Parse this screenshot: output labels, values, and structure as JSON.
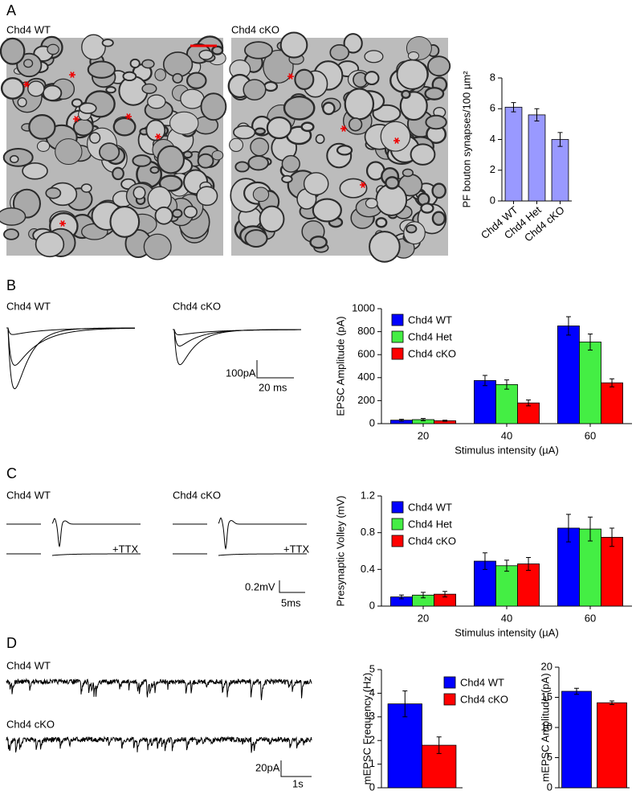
{
  "panel_labels": [
    "A",
    "B",
    "C",
    "D"
  ],
  "panel_a": {
    "images": [
      "Chd4 WT",
      "Chd4 cKO"
    ]
  },
  "panel_b": {
    "traces": [
      "Chd4 WT",
      "Chd4 cKO"
    ],
    "scale_y": "100pA",
    "scale_x": "20 ms"
  },
  "panel_c": {
    "traces": [
      "Chd4 WT",
      "Chd4 cKO"
    ],
    "ttx": [
      "+TTX",
      "+TTX"
    ],
    "scale_y": "0.2mV",
    "scale_x": "5ms"
  },
  "panel_d": {
    "traces": [
      "Chd4 WT",
      "Chd4 cKO"
    ],
    "scale_y": "20pA",
    "scale_x": "1s"
  },
  "chart_data": [
    {
      "type": "bar",
      "ylabel": "PF bouton synapses/100 µm²",
      "categories": [
        "Chd4 WT",
        "Chd4 Het",
        "Chd4 cKO"
      ],
      "values": [
        6.1,
        5.6,
        4.0
      ],
      "errors": [
        0.3,
        0.4,
        0.45
      ],
      "color": "#9999ff",
      "ylim": [
        0,
        8
      ],
      "yticks": [
        0,
        2,
        4,
        6,
        8
      ]
    },
    {
      "type": "bar",
      "ylabel": "EPSC Amplitude (pA)",
      "xlabel": "Stimulus intensity (µA)",
      "categories": [
        "20",
        "40",
        "60"
      ],
      "series": [
        {
          "name": "Chd4 WT",
          "color": "#0000ff",
          "values": [
            30,
            375,
            850
          ],
          "errors": [
            8,
            45,
            80
          ]
        },
        {
          "name": "Chd4 Het",
          "color": "#44ee44",
          "values": [
            35,
            340,
            710
          ],
          "errors": [
            10,
            40,
            70
          ]
        },
        {
          "name": "Chd4 cKO",
          "color": "#ff0000",
          "values": [
            25,
            180,
            355
          ],
          "errors": [
            5,
            25,
            35
          ]
        }
      ],
      "ylim": [
        0,
        1000
      ],
      "yticks": [
        0,
        200,
        400,
        600,
        800,
        1000
      ],
      "legend": "upper left"
    },
    {
      "type": "bar",
      "ylabel": "Presynaptic Volley (mV)",
      "xlabel": "Stimulus intensity (µA)",
      "categories": [
        "20",
        "40",
        "60"
      ],
      "series": [
        {
          "name": "Chd4 WT",
          "color": "#0000ff",
          "values": [
            0.1,
            0.49,
            0.85
          ],
          "errors": [
            0.02,
            0.09,
            0.15
          ]
        },
        {
          "name": "Chd4 Het",
          "color": "#44ee44",
          "values": [
            0.12,
            0.44,
            0.84
          ],
          "errors": [
            0.03,
            0.06,
            0.13
          ]
        },
        {
          "name": "Chd4 cKO",
          "color": "#ff0000",
          "values": [
            0.13,
            0.46,
            0.75
          ],
          "errors": [
            0.03,
            0.07,
            0.1
          ]
        }
      ],
      "ylim": [
        0,
        1.2
      ],
      "yticks": [
        0,
        0.4,
        0.8,
        1.2
      ],
      "legend": "upper left"
    },
    {
      "type": "bar",
      "ylabel": "mEPSC Frequency (Hz)",
      "series": [
        {
          "name": "Chd4 WT",
          "color": "#0000ff",
          "values": [
            3.55
          ],
          "errors": [
            0.55
          ]
        },
        {
          "name": "Chd4 cKO",
          "color": "#ff0000",
          "values": [
            1.8
          ],
          "errors": [
            0.35
          ]
        }
      ],
      "ylim": [
        0,
        5
      ],
      "yticks": [
        0,
        1,
        2,
        3,
        4,
        5
      ],
      "legend": "upper right"
    },
    {
      "type": "bar",
      "ylabel": "mEPSC Amplitude (pA)",
      "values": [
        16,
        14.1
      ],
      "errors": [
        0.5,
        0.3
      ],
      "colors": [
        "#0000ff",
        "#ff0000"
      ],
      "ylim": [
        0,
        20
      ],
      "yticks": [
        0,
        5,
        10,
        15,
        20
      ]
    }
  ]
}
